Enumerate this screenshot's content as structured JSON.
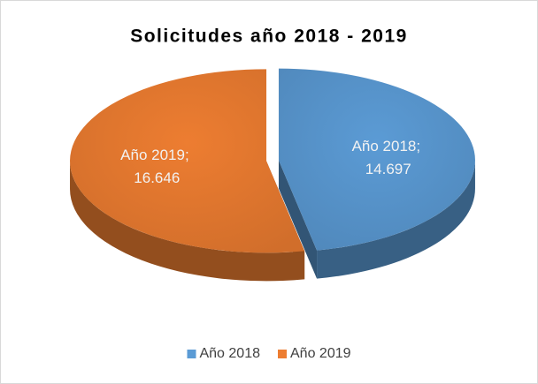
{
  "chart_data": {
    "type": "pie",
    "title": "Solicitudes año 2018 - 2019",
    "categories": [
      "Año 2018",
      "Año 2019"
    ],
    "values": [
      14697,
      16646
    ],
    "value_labels": [
      "Año 2018; 14.697",
      "Año 2019; 16.646"
    ],
    "colors": [
      "#5b9bd5",
      "#ed7d31"
    ],
    "legend": "bottom"
  }
}
